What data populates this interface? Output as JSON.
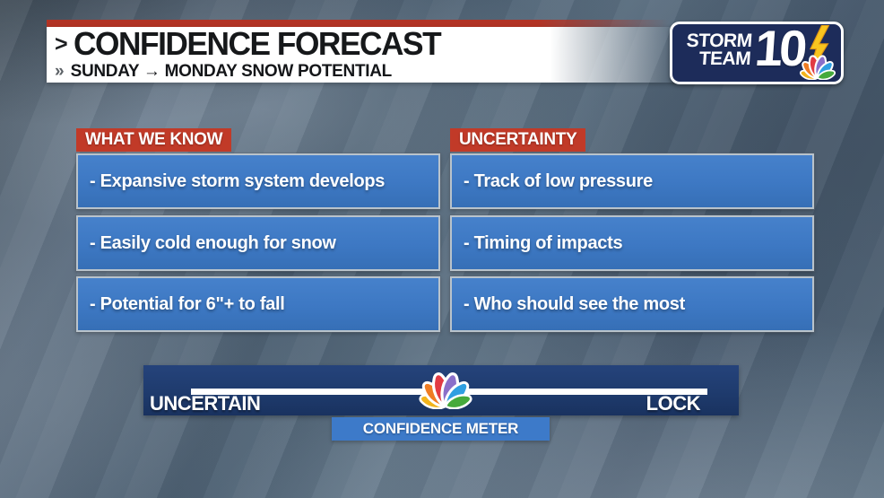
{
  "header": {
    "chevron": ">",
    "title": "CONFIDENCE FORECAST",
    "subtitle_chevron": "»",
    "subtitle": "SUNDAY → MONDAY SNOW POTENTIAL"
  },
  "logo": {
    "line1": "STORM",
    "line2": "TEAM",
    "number": "10"
  },
  "columns": [
    {
      "header": "WHAT WE KNOW",
      "items": [
        "- Expansive storm system develops",
        "- Easily cold enough for snow",
        "- Potential for 6\"+ to fall"
      ]
    },
    {
      "header": "UNCERTAINTY",
      "items": [
        "- Track of low pressure",
        "- Timing of impacts",
        "- Who should see the most"
      ]
    }
  ],
  "meter": {
    "left_label": "UNCERTAIN",
    "right_label": "LOCK",
    "caption": "CONFIDENCE METER",
    "indicator_pct": 50.8
  },
  "colors": {
    "accent_red": "#c13a28",
    "stripe_red": "#b23324",
    "box_blue": "#3d78c3",
    "box_border_silver": "#b9c3cb",
    "meter_navy": "#1e3a6c",
    "caption_blue": "#3d7ac9",
    "logo_navy": "#1d2c5a",
    "bolt_yellow": "#f9c51f",
    "text_dark": "#16181a",
    "peacock": [
      "#f2b41c",
      "#ef7c23",
      "#e23a43",
      "#8a6fc9",
      "#2f9fe1",
      "#46aa3c"
    ]
  }
}
